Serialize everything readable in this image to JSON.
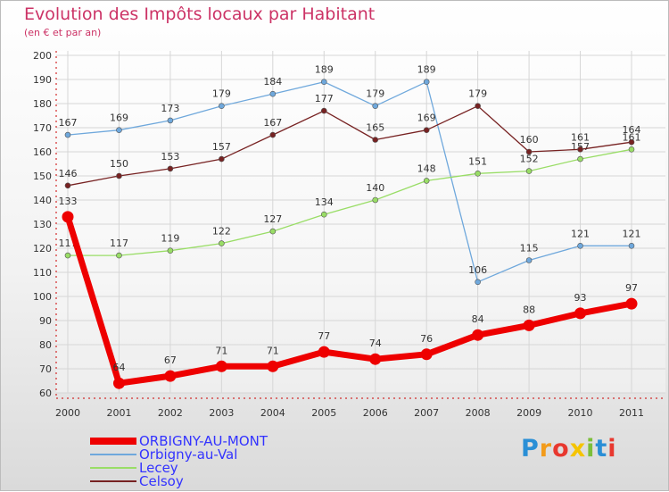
{
  "header": {
    "title": "Evolution des Impôts locaux par Habitant",
    "subtitle": "(en € et par an)"
  },
  "logo": {
    "letters": [
      "P",
      "r",
      "o",
      "x",
      "i",
      "t",
      "i"
    ],
    "colors": [
      "#2a8fd6",
      "#f29b1a",
      "#e8382f",
      "#f5c400",
      "#7cbf3a",
      "#2a8fd6",
      "#e8382f"
    ]
  },
  "chart_data": {
    "type": "line",
    "title": "Evolution des Impôts locaux par Habitant",
    "subtitle": "(en € et par an)",
    "xlabel": "",
    "ylabel": "",
    "ylim": [
      60,
      200
    ],
    "ytick_step": 10,
    "x": [
      "2000",
      "2001",
      "2002",
      "2003",
      "2004",
      "2005",
      "2006",
      "2007",
      "2008",
      "2009",
      "2010",
      "2011"
    ],
    "series": [
      {
        "name": "ORBIGNY-AU-MONT",
        "color": "#ee0000",
        "values": [
          133,
          64,
          67,
          71,
          71,
          77,
          74,
          76,
          84,
          88,
          93,
          97
        ]
      },
      {
        "name": "Orbigny-au-Val",
        "color": "#6fa8dc",
        "values": [
          167,
          169,
          173,
          179,
          184,
          189,
          179,
          189,
          106,
          115,
          121,
          121
        ]
      },
      {
        "name": "Lecey",
        "color": "#99dd66",
        "values": [
          117,
          117,
          119,
          122,
          127,
          134,
          140,
          148,
          151,
          152,
          157,
          161
        ]
      },
      {
        "name": "Celsoy",
        "color": "#772222",
        "values": [
          146,
          150,
          153,
          157,
          167,
          177,
          165,
          169,
          179,
          160,
          161,
          164
        ]
      }
    ],
    "grid": true,
    "legend": "bottom-left"
  }
}
